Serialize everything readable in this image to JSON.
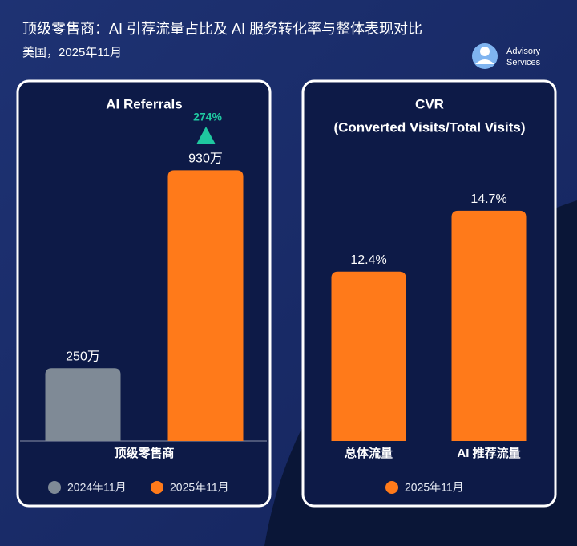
{
  "title": "顶级零售商：AI 引荐流量占比及 AI 服务转化率与整体表现对比",
  "subtitle": "美国，2025年11月",
  "brand": [
    "Advisory",
    "Services"
  ],
  "chart_data": [
    {
      "type": "bar",
      "title": "AI Referrals",
      "categories": [
        "顶级零售商"
      ],
      "series": [
        {
          "name": "2024年11月",
          "color": "#7f8a96",
          "values": [
            250
          ],
          "value_labels": [
            "250万"
          ]
        },
        {
          "name": "2025年11月",
          "color": "#ff7a1a",
          "values": [
            930
          ],
          "value_labels": [
            "930万"
          ]
        }
      ],
      "annotation": "274%",
      "ylim": [
        0,
        1000
      ]
    },
    {
      "type": "bar",
      "title": "CVR",
      "subtitle": "(Converted Visits/Total Visits)",
      "categories": [
        "总体流量",
        "AI 推荐流量"
      ],
      "series": [
        {
          "name": "2025年11月",
          "color": "#ff7a1a",
          "values": [
            12.4,
            14.7
          ],
          "value_labels": [
            "12.4%",
            "14.7%"
          ]
        }
      ],
      "ylim": [
        6,
        16
      ]
    }
  ]
}
